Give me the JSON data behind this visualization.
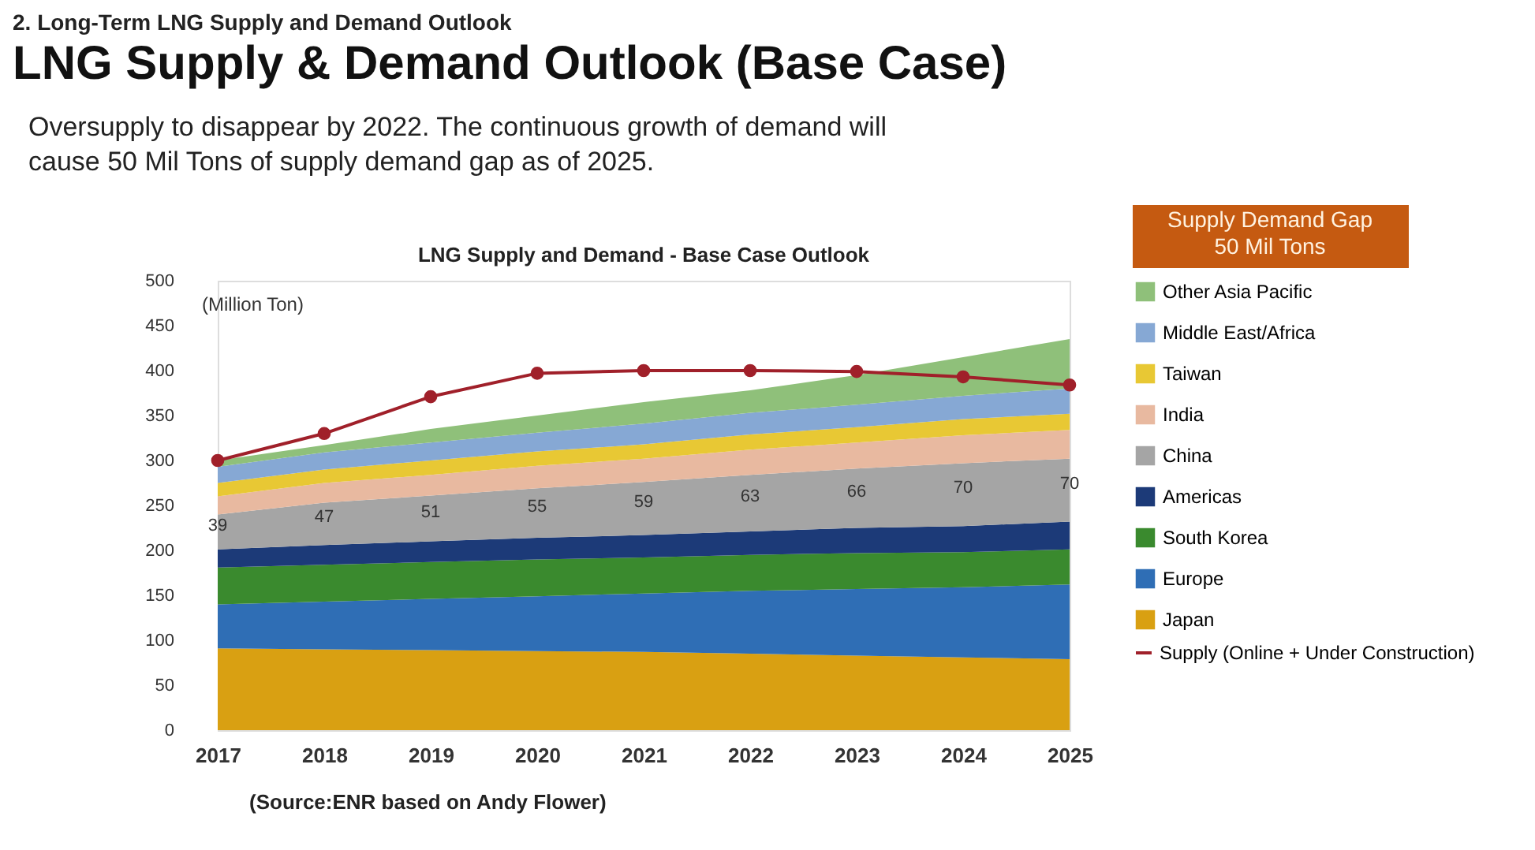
{
  "chart_data": {
    "type": "area",
    "stacked": true,
    "title": "LNG Supply and Demand - Base Case Outlook",
    "ylabel": "(Million Ton)",
    "annotations": [
      "2. Long-Term LNG Supply and Demand Outlook",
      "LNG Supply & Demand Outlook (Base Case)",
      "Oversupply to disappear by 2022. The continuous growth of demand will\ncause 50 Mil Tons of supply demand gap as of 2025.",
      "Supply Demand Gap\n50 Mil Tons",
      "(Source:ENR based on Andy Flower)"
    ],
    "x": [
      2017,
      2018,
      2019,
      2020,
      2021,
      2022,
      2023,
      2024,
      2025
    ],
    "xlim": [
      2017,
      2025
    ],
    "xticks": [
      2017,
      2018,
      2019,
      2020,
      2021,
      2022,
      2023,
      2024,
      2025
    ],
    "ylim": [
      0,
      500
    ],
    "yticks": [
      0,
      50,
      100,
      150,
      200,
      250,
      300,
      350,
      400,
      450,
      500
    ],
    "grid": false,
    "legend": "right",
    "series": [
      {
        "name": "Japan",
        "color": "#d9a012",
        "values": [
          91,
          90,
          89,
          88,
          87,
          85,
          83,
          81,
          79
        ]
      },
      {
        "name": "Europe",
        "color": "#2f6eb5",
        "values": [
          49,
          53,
          57,
          61,
          65,
          70,
          74,
          78,
          83
        ]
      },
      {
        "name": "South Korea",
        "color": "#3a8a2e",
        "values": [
          41,
          41,
          41,
          41,
          40,
          40,
          40,
          39,
          39
        ]
      },
      {
        "name": "Americas",
        "color": "#1c3a78",
        "values": [
          20,
          22,
          23,
          24,
          25,
          26,
          28,
          29,
          31
        ]
      },
      {
        "name": "China",
        "color": "#a5a5a5",
        "values": [
          39,
          47,
          51,
          55,
          59,
          63,
          66,
          70,
          70
        ],
        "value_labels": [
          "39",
          "47",
          "51",
          "55",
          "59",
          "63",
          "66",
          "70",
          "70"
        ]
      },
      {
        "name": "India",
        "color": "#e8b9a0",
        "values": [
          20,
          22,
          23,
          25,
          26,
          28,
          29,
          31,
          32
        ]
      },
      {
        "name": "Taiwan",
        "color": "#e8c834",
        "values": [
          15,
          15,
          16,
          16,
          16,
          17,
          17,
          18,
          18
        ]
      },
      {
        "name": "Middle East/Africa",
        "color": "#86a8d4",
        "values": [
          18,
          19,
          20,
          21,
          23,
          24,
          25,
          26,
          28
        ]
      },
      {
        "name": "Other Asia Pacific",
        "color": "#8fc07a",
        "values": [
          7,
          8,
          15,
          19,
          24,
          25,
          33,
          43,
          55
        ]
      },
      {
        "name": "Supply (Online + Under Construction)",
        "type": "line",
        "color": "#a0202a",
        "marker": "circle",
        "line_style": "solid",
        "values": [
          300,
          330,
          371,
          397,
          400,
          400,
          399,
          393,
          384
        ]
      }
    ]
  }
}
